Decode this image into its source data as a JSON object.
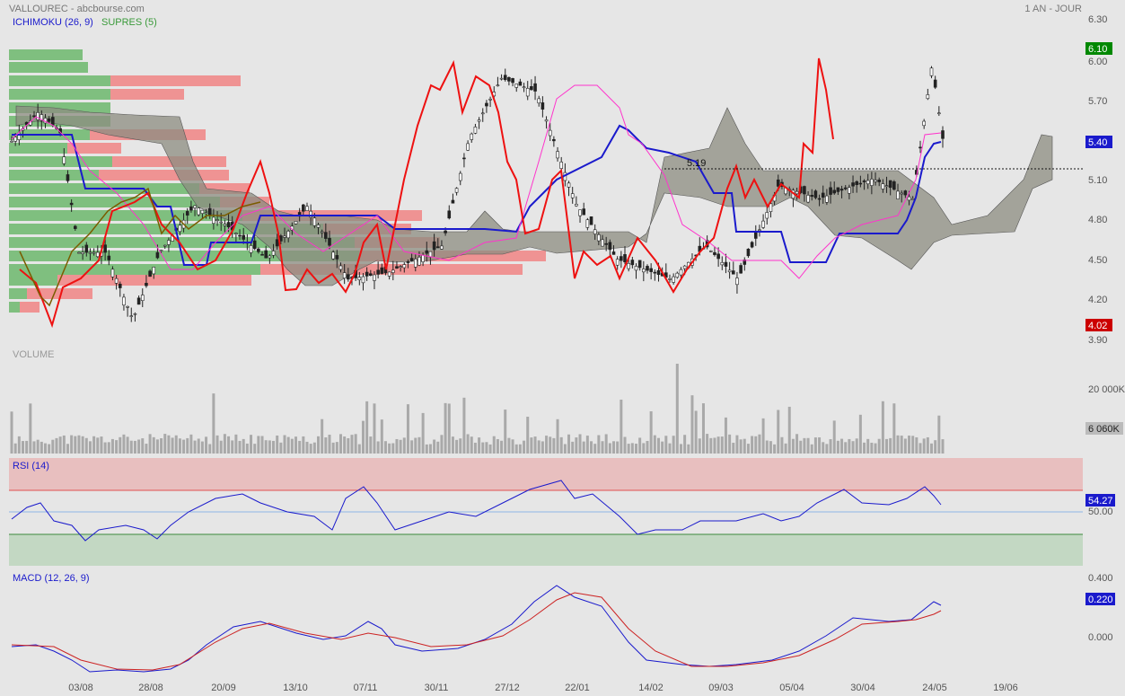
{
  "header": {
    "title": "VALLOUREC - abcbourse.com",
    "period": "1 AN - JOUR",
    "ichimoku_label": "ICHIMOKU (26, 9)",
    "supres_label": "SUPRES (5)"
  },
  "colors": {
    "up_bar": "#7fbf7f",
    "down_bar": "#f08a8a",
    "candle": "#222222",
    "tenkan": "#ff33cc",
    "kijun": "#1a1acc",
    "chikou": "#aa0000",
    "price_red": "#ee1111",
    "cloud": "#8c8c80",
    "rsi_line": "#1a1acc",
    "macd_line": "#1a1acc",
    "macd_signal": "#cc2222"
  },
  "chart_data": [
    {
      "type": "candlestick",
      "title": "VALLOUREC - abcbourse.com",
      "ylim": [
        3.9,
        6.3
      ],
      "y_ticks": [
        "6.30",
        "6.00",
        "5.70",
        "5.40",
        "5.10",
        "4.80",
        "4.50",
        "4.20",
        "3.90"
      ],
      "x_ticks": [
        "03/08",
        "28/08",
        "20/09",
        "13/10",
        "07/11",
        "30/11",
        "27/12",
        "22/01",
        "14/02",
        "09/03",
        "05/04",
        "30/04",
        "24/05",
        "19/06"
      ],
      "last": "5.40",
      "high_badge": "6.10",
      "low_badge": "4.02",
      "reference_line": {
        "value": 5.19,
        "label": "5.19"
      },
      "series": [
        {
          "name": "ICHIMOKU (26, 9)"
        },
        {
          "name": "SUPRES (5)"
        }
      ]
    },
    {
      "type": "bar",
      "title": "VOLUME",
      "y_ticks": [
        "20 000K"
      ],
      "last_badge": "6 060K"
    },
    {
      "type": "line",
      "title": "RSI (14)",
      "ylim": [
        0,
        100
      ],
      "y_ticks": [
        "50.00"
      ],
      "overbought": 70,
      "oversold": 30,
      "last_badge": "54.27"
    },
    {
      "type": "line",
      "title": "MACD (12, 26, 9)",
      "y_ticks": [
        "0.400",
        "0.000"
      ],
      "last_badge": "0.220"
    }
  ]
}
